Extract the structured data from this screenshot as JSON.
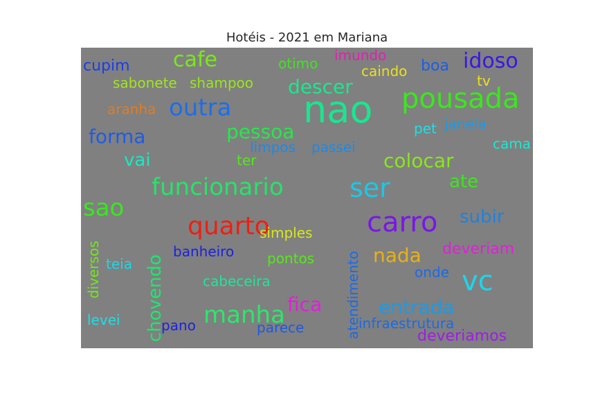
{
  "title": "Hotéis - 2021 em Mariana",
  "background_color": "#808080",
  "words": [
    {
      "text": "nao",
      "color": "#19e68f"
    },
    {
      "text": "pousada",
      "color": "#3ae81c"
    },
    {
      "text": "carro",
      "color": "#7a16e8"
    },
    {
      "text": "ser",
      "color": "#1ac8e8"
    },
    {
      "text": "vc",
      "color": "#1ad6ee"
    },
    {
      "text": "funcionario",
      "color": "#27e36a"
    },
    {
      "text": "quarto",
      "color": "#ee1f12"
    },
    {
      "text": "manha",
      "color": "#2ae86a"
    },
    {
      "text": "outra",
      "color": "#1c6ee8"
    },
    {
      "text": "sao",
      "color": "#38e81e"
    },
    {
      "text": "idoso",
      "color": "#3a16e6"
    },
    {
      "text": "cafe",
      "color": "#7ae81a"
    },
    {
      "text": "descer",
      "color": "#1ae88e"
    },
    {
      "text": "colocar",
      "color": "#88e81a"
    },
    {
      "text": "forma",
      "color": "#1c5ce8"
    },
    {
      "text": "pessoa",
      "color": "#25e84a"
    },
    {
      "text": "entrada",
      "color": "#1a9ae8"
    },
    {
      "text": "fica",
      "color": "#e81ae0"
    },
    {
      "text": "nada",
      "color": "#e8b01a"
    },
    {
      "text": "chovendo",
      "color": "#1ae870"
    },
    {
      "text": "subir",
      "color": "#1a82e8"
    },
    {
      "text": "ate",
      "color": "#3ae81a"
    },
    {
      "text": "vai",
      "color": "#1ae8c0"
    },
    {
      "text": "sabonete",
      "color": "#a0e81a"
    },
    {
      "text": "shampoo",
      "color": "#98e81a"
    },
    {
      "text": "deveriam",
      "color": "#e81ae0"
    },
    {
      "text": "banheiro",
      "color": "#1a22e0"
    },
    {
      "text": "atendimento",
      "color": "#1a6ae8"
    },
    {
      "text": "infraestrutura",
      "color": "#1a6ae8"
    },
    {
      "text": "deveriamos",
      "color": "#a01ae8"
    },
    {
      "text": "cupim",
      "color": "#1a3ee8"
    },
    {
      "text": "otimo",
      "color": "#3ae81a"
    },
    {
      "text": "imundo",
      "color": "#e81ab8"
    },
    {
      "text": "caindo",
      "color": "#e8e21a"
    },
    {
      "text": "boa",
      "color": "#1a5ee8"
    },
    {
      "text": "tv",
      "color": "#e8e21a"
    },
    {
      "text": "aranha",
      "color": "#e87a1a"
    },
    {
      "text": "pet",
      "color": "#1ae0e8"
    },
    {
      "text": "janela",
      "color": "#1a9ae8"
    },
    {
      "text": "cama",
      "color": "#1ae8d0"
    },
    {
      "text": "limpos",
      "color": "#1a8ae8"
    },
    {
      "text": "passei",
      "color": "#1a8ae8"
    },
    {
      "text": "ter",
      "color": "#56e81a"
    },
    {
      "text": "simples",
      "color": "#d8e81a"
    },
    {
      "text": "pontos",
      "color": "#56e81a"
    },
    {
      "text": "cabeceira",
      "color": "#1ae89a"
    },
    {
      "text": "onde",
      "color": "#1a6ae8"
    },
    {
      "text": "teia",
      "color": "#1ad8e8"
    },
    {
      "text": "diversos",
      "color": "#72e81a"
    },
    {
      "text": "levei",
      "color": "#1ae0e8"
    },
    {
      "text": "pano",
      "color": "#1a22e0"
    },
    {
      "text": "parece",
      "color": "#1a5ae8"
    }
  ]
}
